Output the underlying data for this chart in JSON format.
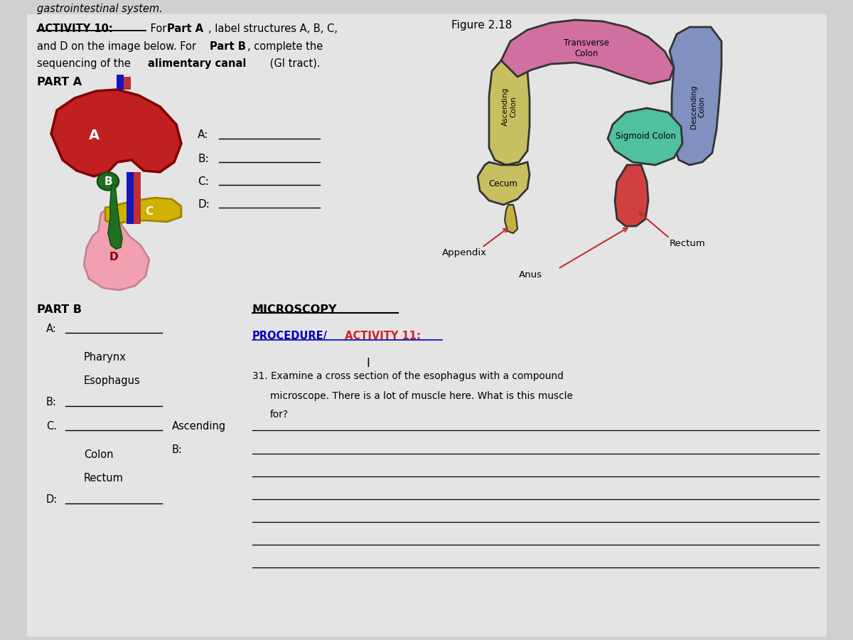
{
  "bg_color": "#d0d0d0",
  "page_bg": "#e4e4e4",
  "figure_label": "Figure 2.18",
  "part_a_label": "PART A",
  "part_b_label": "PART B",
  "microscopy_label": "MICROSCOPY",
  "liver_color": "#c02020",
  "liver_edge": "#800000",
  "gb_color": "#207020",
  "pancreas_color": "#d0b000",
  "stomach_color": "#f0a0b0",
  "transverse_color": "#d070a0",
  "ascending_color": "#c8c060",
  "descending_color": "#8090c0",
  "cecum_color": "#c8c060",
  "sigmoid_color": "#50c0a0",
  "rectum_color": "#d04040",
  "appendix_color": "#c8b040",
  "arrow_color": "#c03030",
  "colon_edge": "#333333",
  "blue_vessel": "#1515bb",
  "procedure_blue": "#0000bb",
  "activity_red": "#cc2222"
}
